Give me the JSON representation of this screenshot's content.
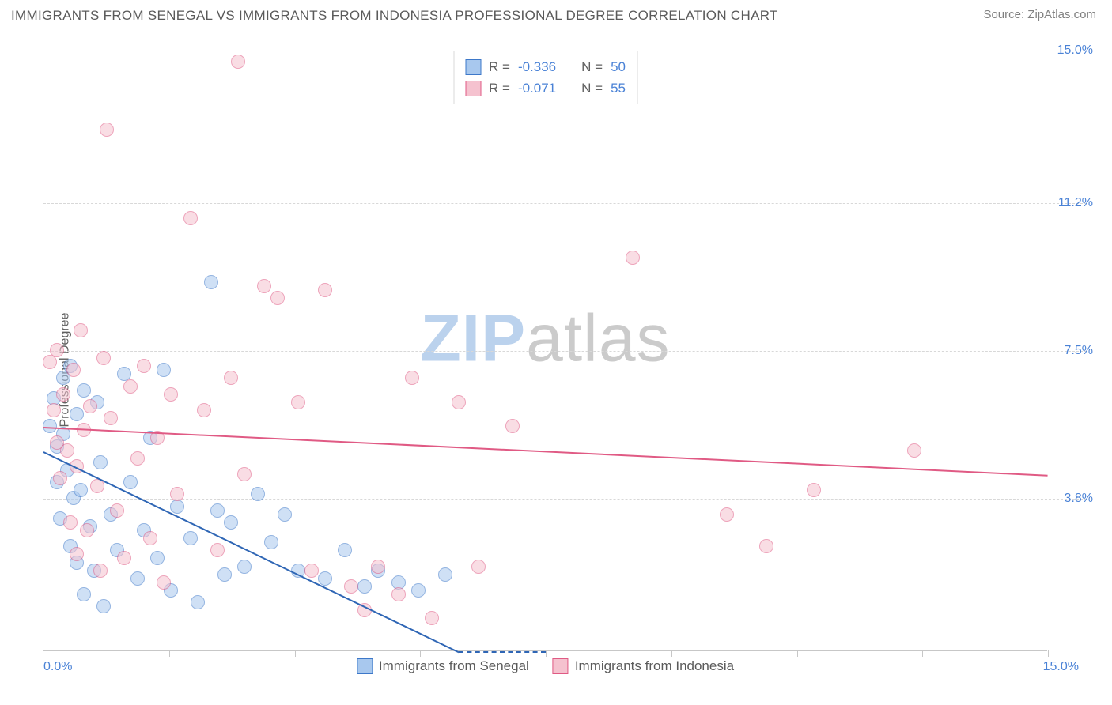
{
  "title": "IMMIGRANTS FROM SENEGAL VS IMMIGRANTS FROM INDONESIA PROFESSIONAL DEGREE CORRELATION CHART",
  "source": "Source: ZipAtlas.com",
  "ylabel": "Professional Degree",
  "watermark": {
    "part1": "ZIP",
    "part2": "atlas"
  },
  "chart": {
    "type": "scatter",
    "background_color": "#ffffff",
    "grid_color": "#d8d8d8",
    "axis_color": "#c7c7c7",
    "xlim": [
      0,
      15
    ],
    "ylim": [
      0,
      15
    ],
    "ytick_values": [
      3.8,
      7.5,
      11.2,
      15.0
    ],
    "ytick_labels": [
      "3.8%",
      "7.5%",
      "11.2%",
      "15.0%"
    ],
    "xtick_values": [
      0,
      1.875,
      3.75,
      5.625,
      7.5,
      9.375,
      11.25,
      13.125,
      15
    ],
    "xaxis_label_left": "0.0%",
    "xaxis_label_right": "15.0%",
    "tick_label_color": "#4a82d6",
    "marker_radius": 9,
    "marker_opacity": 0.55,
    "series": [
      {
        "name": "Immigrants from Senegal",
        "color_fill": "#a8c8ee",
        "color_stroke": "#3d78c9",
        "R": "-0.336",
        "N": "50",
        "trend": {
          "x1": 0,
          "y1": 5.0,
          "x2": 6.2,
          "y2": 0,
          "extend_dashed_to_x": 7.5,
          "color": "#2f66b5",
          "width": 2
        },
        "points": [
          [
            0.1,
            5.6
          ],
          [
            0.15,
            6.3
          ],
          [
            0.2,
            5.1
          ],
          [
            0.2,
            4.2
          ],
          [
            0.25,
            3.3
          ],
          [
            0.3,
            6.8
          ],
          [
            0.3,
            5.4
          ],
          [
            0.35,
            4.5
          ],
          [
            0.4,
            7.1
          ],
          [
            0.4,
            2.6
          ],
          [
            0.45,
            3.8
          ],
          [
            0.5,
            5.9
          ],
          [
            0.5,
            2.2
          ],
          [
            0.55,
            4.0
          ],
          [
            0.6,
            6.5
          ],
          [
            0.6,
            1.4
          ],
          [
            0.7,
            3.1
          ],
          [
            0.75,
            2.0
          ],
          [
            0.8,
            6.2
          ],
          [
            0.85,
            4.7
          ],
          [
            0.9,
            1.1
          ],
          [
            1.0,
            3.4
          ],
          [
            1.1,
            2.5
          ],
          [
            1.2,
            6.9
          ],
          [
            1.3,
            4.2
          ],
          [
            1.4,
            1.8
          ],
          [
            1.5,
            3.0
          ],
          [
            1.6,
            5.3
          ],
          [
            1.7,
            2.3
          ],
          [
            1.8,
            7.0
          ],
          [
            1.9,
            1.5
          ],
          [
            2.0,
            3.6
          ],
          [
            2.2,
            2.8
          ],
          [
            2.3,
            1.2
          ],
          [
            2.5,
            9.2
          ],
          [
            2.6,
            3.5
          ],
          [
            2.7,
            1.9
          ],
          [
            2.8,
            3.2
          ],
          [
            3.0,
            2.1
          ],
          [
            3.2,
            3.9
          ],
          [
            3.4,
            2.7
          ],
          [
            3.6,
            3.4
          ],
          [
            3.8,
            2.0
          ],
          [
            4.2,
            1.8
          ],
          [
            4.5,
            2.5
          ],
          [
            4.8,
            1.6
          ],
          [
            5.0,
            2.0
          ],
          [
            5.3,
            1.7
          ],
          [
            5.6,
            1.5
          ],
          [
            6.0,
            1.9
          ]
        ]
      },
      {
        "name": "Immigrants from Indonesia",
        "color_fill": "#f5c2cf",
        "color_stroke": "#e05a84",
        "R": "-0.071",
        "N": "55",
        "trend": {
          "x1": 0,
          "y1": 5.6,
          "x2": 15,
          "y2": 4.4,
          "color": "#e05a84",
          "width": 2
        },
        "points": [
          [
            0.1,
            7.2
          ],
          [
            0.15,
            6.0
          ],
          [
            0.2,
            5.2
          ],
          [
            0.2,
            7.5
          ],
          [
            0.25,
            4.3
          ],
          [
            0.3,
            6.4
          ],
          [
            0.35,
            5.0
          ],
          [
            0.4,
            3.2
          ],
          [
            0.45,
            7.0
          ],
          [
            0.5,
            4.6
          ],
          [
            0.5,
            2.4
          ],
          [
            0.55,
            8.0
          ],
          [
            0.6,
            5.5
          ],
          [
            0.65,
            3.0
          ],
          [
            0.7,
            6.1
          ],
          [
            0.8,
            4.1
          ],
          [
            0.85,
            2.0
          ],
          [
            0.9,
            7.3
          ],
          [
            0.95,
            13.0
          ],
          [
            1.0,
            5.8
          ],
          [
            1.1,
            3.5
          ],
          [
            1.2,
            2.3
          ],
          [
            1.3,
            6.6
          ],
          [
            1.4,
            4.8
          ],
          [
            1.5,
            7.1
          ],
          [
            1.6,
            2.8
          ],
          [
            1.7,
            5.3
          ],
          [
            1.8,
            1.7
          ],
          [
            1.9,
            6.4
          ],
          [
            2.0,
            3.9
          ],
          [
            2.2,
            10.8
          ],
          [
            2.4,
            6.0
          ],
          [
            2.6,
            2.5
          ],
          [
            2.8,
            6.8
          ],
          [
            2.9,
            14.7
          ],
          [
            3.0,
            4.4
          ],
          [
            3.3,
            9.1
          ],
          [
            3.5,
            8.8
          ],
          [
            3.8,
            6.2
          ],
          [
            4.0,
            2.0
          ],
          [
            4.2,
            9.0
          ],
          [
            4.6,
            1.6
          ],
          [
            4.8,
            1.0
          ],
          [
            5.0,
            2.1
          ],
          [
            5.3,
            1.4
          ],
          [
            5.5,
            6.8
          ],
          [
            5.8,
            0.8
          ],
          [
            6.2,
            6.2
          ],
          [
            6.5,
            2.1
          ],
          [
            7.0,
            5.6
          ],
          [
            8.8,
            9.8
          ],
          [
            10.2,
            3.4
          ],
          [
            10.8,
            2.6
          ],
          [
            11.5,
            4.0
          ],
          [
            13.0,
            5.0
          ]
        ]
      }
    ]
  },
  "legend": {
    "r_label": "R =",
    "n_label": "N ="
  },
  "bottom_legend_labels": [
    "Immigrants from Senegal",
    "Immigrants from Indonesia"
  ]
}
